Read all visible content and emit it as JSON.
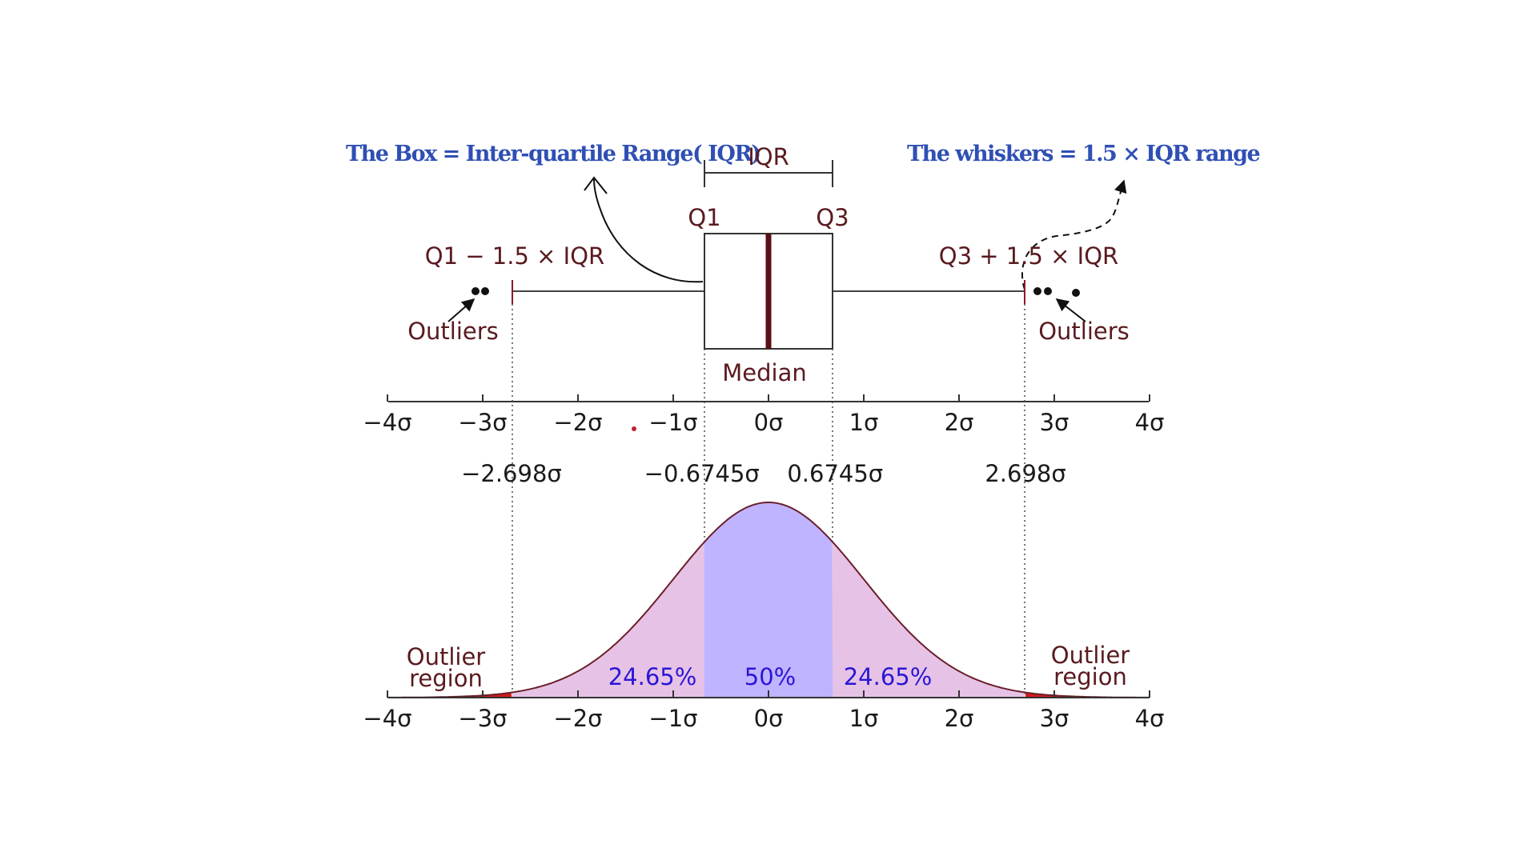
{
  "annotations": {
    "box_note": "The Box = Inter-quartile Range( IQR)",
    "whisker_note": "The whiskers = 1.5 × IQR range"
  },
  "boxplot": {
    "iqr_label": "IQR",
    "q1_label": "Q1",
    "q3_label": "Q3",
    "lower_whisker_label": "Q1 − 1.5 × IQR",
    "upper_whisker_label": "Q3 + 1.5 × IQR",
    "outliers_left_label": "Outliers",
    "outliers_right_label": "Outliers",
    "median_label": "Median"
  },
  "axis_ticks": [
    "−4σ",
    "−3σ",
    "−2σ",
    "−1σ",
    "0σ",
    "1σ",
    "2σ",
    "3σ",
    "4σ"
  ],
  "boundary_labels": [
    "−2.698σ",
    "−0.6745σ",
    "0.6745σ",
    "2.698σ"
  ],
  "distribution": {
    "outlier_region_left": [
      "Outlier",
      "region"
    ],
    "outlier_region_right": [
      "Outlier",
      "region"
    ],
    "pct_left": "24.65%",
    "pct_center": "50%",
    "pct_right": "24.65%"
  },
  "colors": {
    "note_blue": "#2f4fb4",
    "curve": "#6b1f2a",
    "iqr_fill": "#bfb4ff",
    "tail_fill": "#e6c3e6",
    "outlier_red": "#d01a1a",
    "percent_text": "#2a16d6",
    "label_text": "#5a1a1f"
  },
  "chart_data": {
    "type": "area",
    "x_unit": "σ",
    "xlim": [
      -4,
      4
    ],
    "quantiles": {
      "q1": -0.6745,
      "median": 0,
      "q3": 0.6745,
      "lower_fence": -2.698,
      "upper_fence": 2.698
    },
    "regions": [
      {
        "from": -2.698,
        "to": -0.6745,
        "percent": 24.65
      },
      {
        "from": -0.6745,
        "to": 0.6745,
        "percent": 50
      },
      {
        "from": 0.6745,
        "to": 2.698,
        "percent": 24.65
      }
    ],
    "outliers_left": [
      -3.0,
      -2.94
    ],
    "outliers_right": [
      2.86,
      2.94,
      3.24
    ]
  }
}
